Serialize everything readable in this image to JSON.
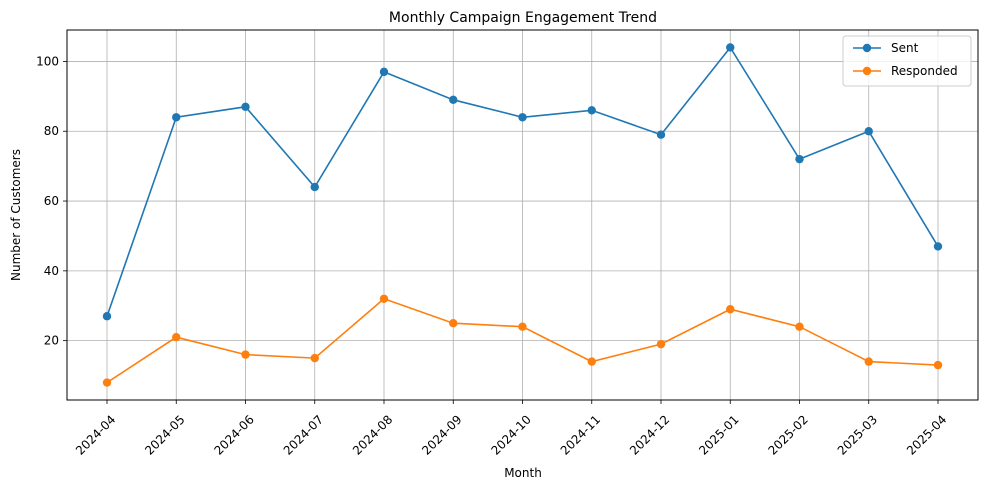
{
  "chart_data": {
    "type": "line",
    "title": "Monthly Campaign Engagement Trend",
    "xlabel": "Month",
    "ylabel": "Number of Customers",
    "categories": [
      "2024-04",
      "2024-05",
      "2024-06",
      "2024-07",
      "2024-08",
      "2024-09",
      "2024-10",
      "2024-11",
      "2024-12",
      "2025-01",
      "2025-02",
      "2025-03",
      "2025-04"
    ],
    "ylim": [
      3,
      109
    ],
    "yticks": [
      "20",
      "40",
      "60",
      "80",
      "100"
    ],
    "grid": true,
    "legend_position": "top-right",
    "series": [
      {
        "name": "Sent",
        "color": "#1f77b4",
        "values": [
          27,
          84,
          87,
          64,
          97,
          89,
          84,
          86,
          79,
          104,
          72,
          80,
          47
        ]
      },
      {
        "name": "Responded",
        "color": "#ff7f0e",
        "values": [
          8,
          21,
          16,
          15,
          32,
          25,
          24,
          14,
          19,
          29,
          24,
          14,
          13
        ]
      }
    ]
  }
}
